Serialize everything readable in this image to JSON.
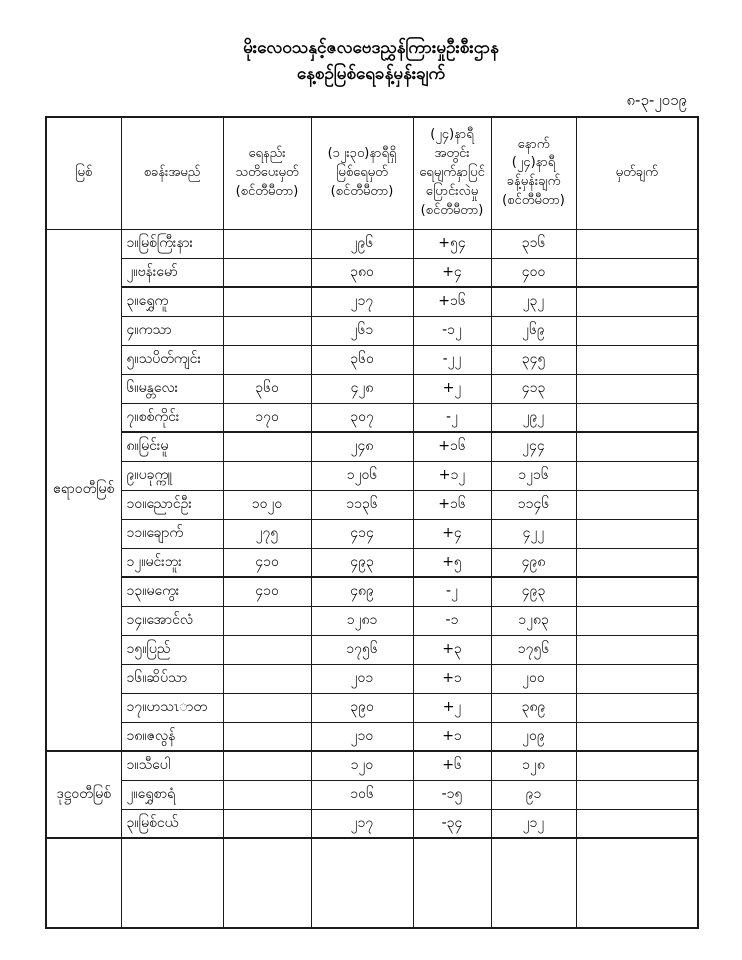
{
  "document": {
    "title_line1": "မိုးလေဝသနှင့်ဇလဗေဒညွှန်ကြားမှုဦးစီးဌာန",
    "title_line2": "နေ့စဉ်မြစ်ရေခန့်မှန်းချက်",
    "date": "၈-၃-၂၀၁၉",
    "text_color": "#000000",
    "background_color": "#ffffff"
  },
  "table": {
    "columns": [
      "မြစ်",
      "စခန်းအမည်",
      "ရေနည်း\nသတိပေးမှတ်\n(စင်တီမီတာ)",
      "(၁၂း၃၀)နာရီရှိ\nမြစ်ရေမှတ်\n(စင်တီမီတာ)",
      "(၂၄)နာရီအတွင်း\nရေမျက်နှာပြင်\nပြောင်းလဲမှု\n(စင်တီမီတာ)",
      "နောက်\n(၂၄)နာရီ\nခန့်မှန်းချက်\n(စင်တီမီတာ)",
      "မှတ်ချက်"
    ],
    "groups": [
      {
        "river": "ဧရာဝတီမြစ်",
        "rows": [
          {
            "station": "၁။မြစ်ကြီးနား",
            "warning": "",
            "level": "၂၉၆",
            "change": "+၅၄",
            "forecast": "၃၁၆",
            "remark": ""
          },
          {
            "station": "၂။ဗန်းမော်",
            "warning": "",
            "level": "၃၈၀",
            "change": "+၄",
            "forecast": "၄၀၀",
            "remark": ""
          },
          {
            "station": "၃။ရွှေကူ",
            "warning": "",
            "level": "၂၁၇",
            "change": "+၁၆",
            "forecast": "၂၃၂",
            "remark": ""
          },
          {
            "station": "၄။ကသာ",
            "warning": "",
            "level": "၂၆၁",
            "change": "-၁၂",
            "forecast": "၂၆၉",
            "remark": ""
          },
          {
            "station": "၅။သပိတ်ကျင်း",
            "warning": "",
            "level": "၃၆၀",
            "change": "-၂၂",
            "forecast": "၃၄၅",
            "remark": ""
          },
          {
            "station": "၆။မန္တလေး",
            "warning": "၃၆၀",
            "level": "၄၂၈",
            "change": "+၂",
            "forecast": "၄၁၃",
            "remark": ""
          },
          {
            "station": "၇။စစ်ကိုင်း",
            "warning": "၁၇၀",
            "level": "၃၀၇",
            "change": "-၂",
            "forecast": "၂၉၂",
            "remark": ""
          },
          {
            "station": "၈။မြင်းမူ",
            "warning": "",
            "level": "၂၄၈",
            "change": "+၁၆",
            "forecast": "၂၄၄",
            "remark": ""
          },
          {
            "station": "၉။ပခုက္ကူ",
            "warning": "",
            "level": "၁၂၀၆",
            "change": "+၁၂",
            "forecast": "၁၂၁၆",
            "remark": ""
          },
          {
            "station": "၁၀။ညောင်ဦး",
            "warning": "၁၀၂၀",
            "level": "၁၁၃၆",
            "change": "+၁၆",
            "forecast": "၁၁၄၆",
            "remark": ""
          },
          {
            "station": "၁၁။ချောက်",
            "warning": "၂၇၅",
            "level": "၄၁၄",
            "change": "+၄",
            "forecast": "၄၂၂",
            "remark": ""
          },
          {
            "station": "၁၂။မင်းဘူး",
            "warning": "၄၁၀",
            "level": "၄၉၃",
            "change": "+၅",
            "forecast": "၄၉၈",
            "remark": ""
          },
          {
            "station": "၁၃။မကွေး",
            "warning": "၄၁၀",
            "level": "၄၈၉",
            "change": "-၂",
            "forecast": "၄၉၃",
            "remark": ""
          },
          {
            "station": "၁၄။အောင်လံ",
            "warning": "",
            "level": "၁၂၈၁",
            "change": "-၁",
            "forecast": "၁၂၈၃",
            "remark": ""
          },
          {
            "station": "၁၅။ပြည်",
            "warning": "",
            "level": "၁၇၅၆",
            "change": "+၃",
            "forecast": "၁၇၅၆",
            "remark": ""
          },
          {
            "station": "၁၆။ဆိပ်သာ",
            "warning": "",
            "level": "၂၀၁",
            "change": "+၁",
            "forecast": "၂၀၀",
            "remark": ""
          },
          {
            "station": "၁၇။ဟသၤာတ",
            "warning": "",
            "level": "၃၉၀",
            "change": "+၂",
            "forecast": "၃၈၉",
            "remark": ""
          },
          {
            "station": "၁၈။ဇလွန်",
            "warning": "",
            "level": "၂၁၀",
            "change": "+၁",
            "forecast": "၂၀၉",
            "remark": ""
          }
        ]
      },
      {
        "river": "ဒုဋ္ဌဝတီမြစ်",
        "rows": [
          {
            "station": "၁။သီပေါ",
            "warning": "",
            "level": "၁၂၀",
            "change": "+၆",
            "forecast": "၁၂၈",
            "remark": ""
          },
          {
            "station": "၂။ရွှေစာရံ",
            "warning": "",
            "level": "၁၀၆",
            "change": "-၁၅",
            "forecast": "၉၁",
            "remark": ""
          },
          {
            "station": "၃။မြစ်ငယ်",
            "warning": "",
            "level": "၂၁၇",
            "change": "-၃၄",
            "forecast": "၂၁၂",
            "remark": ""
          }
        ]
      }
    ]
  }
}
